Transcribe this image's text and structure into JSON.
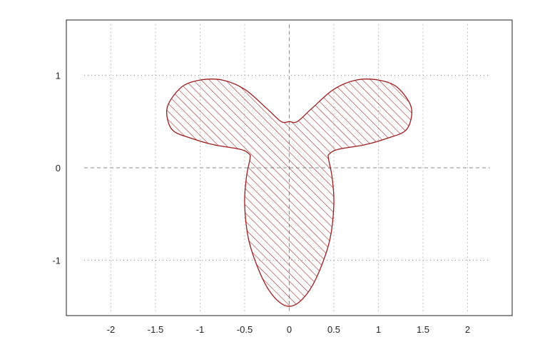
{
  "chart_data": {
    "type": "area",
    "title": "",
    "xlabel": "",
    "ylabel": "",
    "xlim": [
      -2.5,
      2.5
    ],
    "ylim": [
      -1.6,
      1.6
    ],
    "x_ticks": [
      -2,
      -1.5,
      -1,
      -0.5,
      0,
      0.5,
      1,
      1.5,
      2
    ],
    "y_ticks": [
      -1,
      0,
      1
    ],
    "x_tick_labels": [
      "-2",
      "-1.5",
      "-1",
      "-0.5",
      "0",
      "0.5",
      "1",
      "1.5",
      "2"
    ],
    "y_tick_labels": [
      "-1",
      "0",
      "1"
    ],
    "grid": true,
    "legend": "none",
    "fill_pattern": "diagonal-hatch",
    "colors": {
      "curve": "#9b1b1b",
      "hatch": "#9b1b1b",
      "grid": "#888888",
      "axes_frame": "#222222"
    },
    "series": [
      {
        "x": [
          0.0,
          0.09,
          0.25,
          0.5,
          0.75,
          1.0,
          1.2,
          1.35,
          1.37,
          1.3,
          1.1,
          0.85,
          0.55,
          0.45,
          0.44,
          0.48,
          0.5,
          0.45,
          0.3,
          0.15,
          0.0,
          -0.15,
          -0.3,
          -0.45,
          -0.5,
          -0.48,
          -0.44,
          -0.45,
          -0.55,
          -0.85,
          -1.1,
          -1.3,
          -1.37,
          -1.35,
          -1.2,
          -1.0,
          -0.75,
          -0.5,
          -0.25,
          -0.09,
          0.0
        ],
        "y": [
          0.5,
          0.5,
          0.64,
          0.85,
          0.95,
          0.95,
          0.88,
          0.7,
          0.55,
          0.4,
          0.32,
          0.25,
          0.2,
          0.15,
          0.1,
          -0.1,
          -0.4,
          -0.8,
          -1.2,
          -1.42,
          -1.5,
          -1.42,
          -1.2,
          -0.8,
          -0.4,
          -0.1,
          0.1,
          0.15,
          0.2,
          0.25,
          0.32,
          0.4,
          0.55,
          0.7,
          0.88,
          0.95,
          0.95,
          0.85,
          0.64,
          0.5,
          0.5
        ]
      }
    ]
  }
}
